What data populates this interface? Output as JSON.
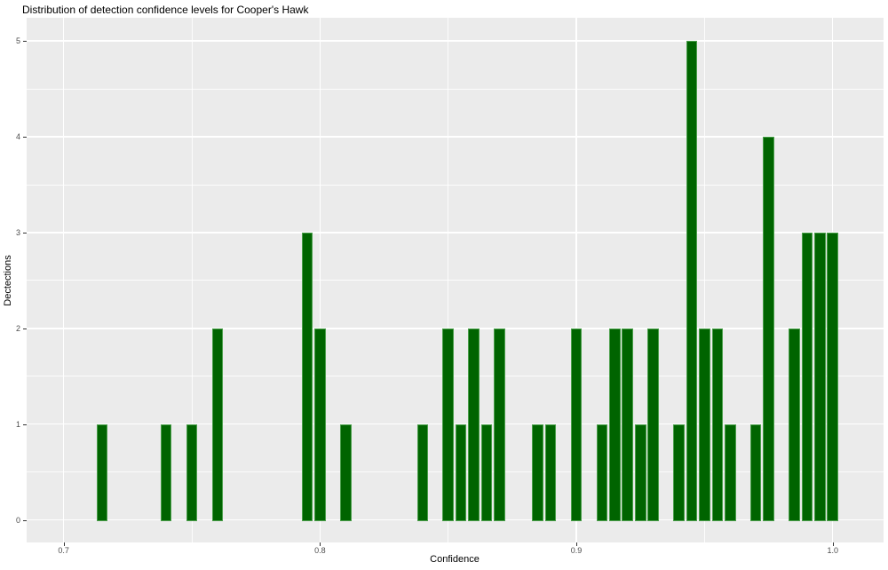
{
  "title": "Distribution of detection confidence levels for Cooper's Hawk",
  "chart_data": {
    "type": "bar",
    "title": "Distribution of detection confidence levels for Cooper's Hawk",
    "xlabel": "Confidence",
    "ylabel": "Dectections",
    "xlim": [
      0.6856,
      1.0198
    ],
    "ylim": [
      -0.25,
      5.25
    ],
    "grid": "on",
    "legend": "none",
    "bin_width": 0.005,
    "x_major_ticks": [
      0.7,
      0.8,
      0.9,
      1.0
    ],
    "x_tick_labels": [
      "0.7",
      "0.8",
      "0.9",
      "1.0"
    ],
    "x_minor_gridlines": [
      0.75,
      0.85,
      0.95
    ],
    "y_major_ticks": [
      0,
      1,
      2,
      3,
      4,
      5
    ],
    "y_tick_labels": [
      "0",
      "1",
      "2",
      "3",
      "4",
      "5"
    ],
    "y_minor_gridlines": [
      0.5,
      1.5,
      2.5,
      3.5,
      4.5
    ],
    "bars": [
      {
        "x": 0.715,
        "count": 1
      },
      {
        "x": 0.74,
        "count": 1
      },
      {
        "x": 0.75,
        "count": 1
      },
      {
        "x": 0.76,
        "count": 2
      },
      {
        "x": 0.795,
        "count": 3
      },
      {
        "x": 0.8,
        "count": 2
      },
      {
        "x": 0.81,
        "count": 1
      },
      {
        "x": 0.84,
        "count": 1
      },
      {
        "x": 0.85,
        "count": 2
      },
      {
        "x": 0.855,
        "count": 1
      },
      {
        "x": 0.86,
        "count": 2
      },
      {
        "x": 0.865,
        "count": 1
      },
      {
        "x": 0.87,
        "count": 2
      },
      {
        "x": 0.885,
        "count": 1
      },
      {
        "x": 0.89,
        "count": 1
      },
      {
        "x": 0.9,
        "count": 2
      },
      {
        "x": 0.91,
        "count": 1
      },
      {
        "x": 0.915,
        "count": 2
      },
      {
        "x": 0.92,
        "count": 2
      },
      {
        "x": 0.925,
        "count": 1
      },
      {
        "x": 0.93,
        "count": 2
      },
      {
        "x": 0.94,
        "count": 1
      },
      {
        "x": 0.945,
        "count": 5
      },
      {
        "x": 0.95,
        "count": 2
      },
      {
        "x": 0.955,
        "count": 2
      },
      {
        "x": 0.96,
        "count": 1
      },
      {
        "x": 0.97,
        "count": 1
      },
      {
        "x": 0.975,
        "count": 4
      },
      {
        "x": 0.985,
        "count": 2
      },
      {
        "x": 0.99,
        "count": 3
      },
      {
        "x": 0.995,
        "count": 3
      },
      {
        "x": 1.0,
        "count": 3
      }
    ],
    "colors": {
      "bar_fill": "#006400",
      "bar_stroke": "#4a9e4a",
      "panel_background": "#EBEBEB",
      "gridline": "#FFFFFF",
      "tick_label": "#4D4D4D",
      "tick_mark": "#333333",
      "text": "#000000",
      "page_background": "#FFFFFF"
    }
  }
}
